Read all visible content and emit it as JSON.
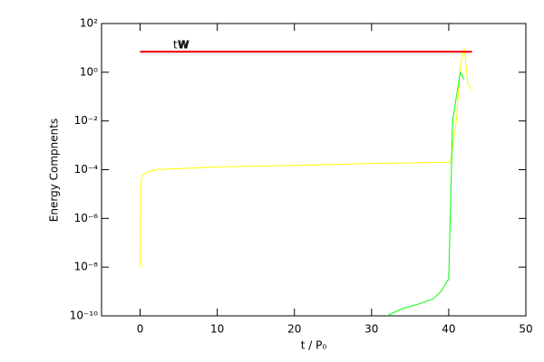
{
  "chart_data": {
    "type": "line",
    "xlabel": "t / P₀",
    "ylabel": "Energy Compnents",
    "xlim": [
      -5,
      50
    ],
    "xticks": [
      0,
      10,
      20,
      30,
      40,
      50
    ],
    "ylim": [
      1e-10,
      100
    ],
    "ylog": true,
    "yticks": [
      {
        "value": 100,
        "label": "10²"
      },
      {
        "value": 1,
        "label": "10⁰"
      },
      {
        "value": 0.01,
        "label": "10⁻²"
      },
      {
        "value": 0.0001,
        "label": "10⁻⁴"
      },
      {
        "value": 1e-06,
        "label": "10⁻⁶"
      },
      {
        "value": 1e-08,
        "label": "10⁻⁸"
      },
      {
        "value": 1e-10,
        "label": "10⁻¹⁰"
      }
    ],
    "series": [
      {
        "name": "tW",
        "color": "#0000ff",
        "x": [
          0,
          43
        ],
        "values": [
          7,
          7
        ]
      },
      {
        "color": "#ffff00",
        "x": [
          0,
          0.1,
          0.3,
          1,
          2,
          5,
          10,
          20,
          30,
          40,
          40.2,
          41,
          41.5,
          42,
          42.5,
          43
        ],
        "values": [
          1e-08,
          3e-05,
          6e-05,
          8e-05,
          0.0001,
          0.00011,
          0.00013,
          0.00015,
          0.00018,
          0.0002,
          0.0002,
          0.01,
          2,
          10,
          0.3,
          0.2
        ]
      },
      {
        "color": "#00ff00",
        "x": [
          32,
          34,
          36,
          38,
          39,
          39.9,
          40,
          40.5,
          41,
          41.5,
          42
        ],
        "values": [
          1e-10,
          2e-10,
          3e-10,
          5e-10,
          1e-09,
          3e-09,
          3e-09,
          0.01,
          0.1,
          1,
          0.5
        ]
      },
      {
        "name": "W",
        "color": "#ff0000",
        "x": [
          0,
          43
        ],
        "values": [
          7,
          7
        ]
      }
    ]
  }
}
